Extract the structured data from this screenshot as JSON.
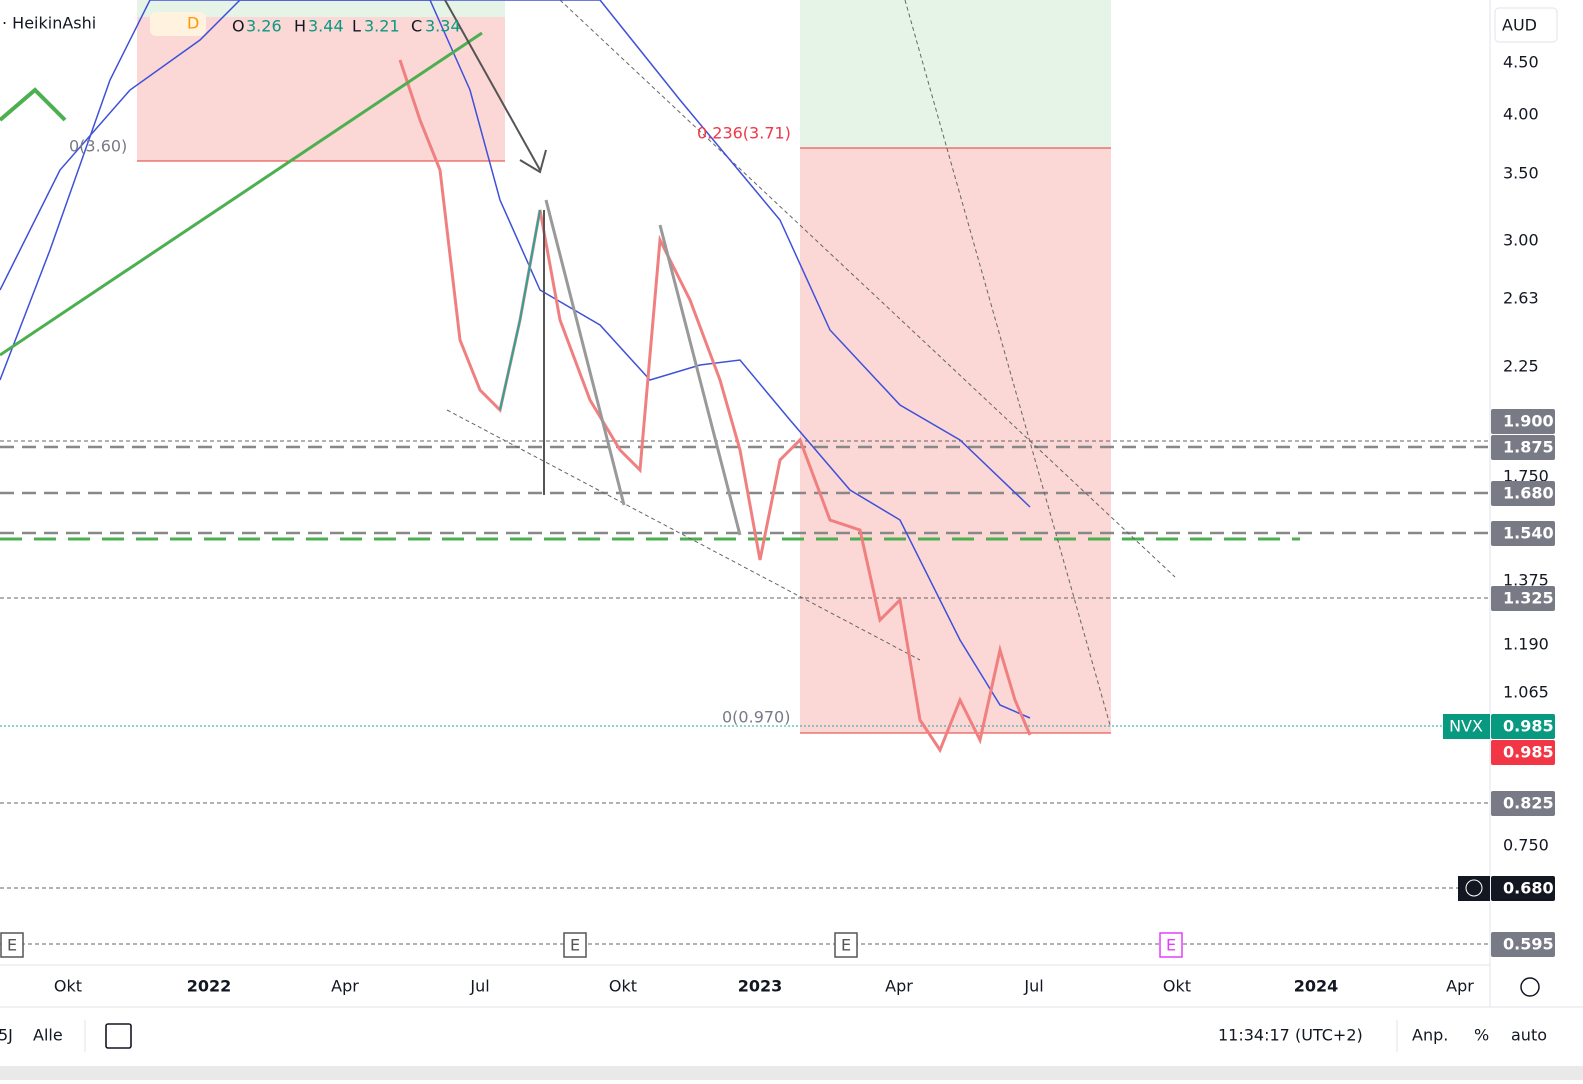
{
  "legend": {
    "style": "· HeikinAshi",
    "interval": "D",
    "open": "O",
    "open_value": "3.26",
    "high": "H",
    "high_value": "3.44",
    "low": "L",
    "low_value": "3.21",
    "close": "C",
    "close_value": "3.34"
  },
  "price_axis": {
    "currency": "AUD",
    "labels": [
      "4.50",
      "4.00",
      "3.50",
      "3.00",
      "2.63",
      "2.25",
      "1.750",
      "1.375",
      "1.190",
      "1.065",
      "0.750"
    ]
  },
  "price_badges": [
    "1.900",
    "1.875",
    "1.680",
    "1.540",
    "1.325",
    "0.985",
    "0.985",
    "0.825",
    "0.680",
    "0.595"
  ],
  "symbol_badge": "NVX",
  "time_axis": [
    "Okt",
    "2022",
    "Apr",
    "Jul",
    "Okt",
    "2023",
    "Apr",
    "Jul",
    "Okt",
    "2024",
    "Apr"
  ],
  "fib_labels": [
    "0(3.60)",
    "0.236(3.71)",
    "0(0.970)"
  ],
  "event_markers": [
    "E",
    "E",
    "E",
    "E"
  ],
  "toolbar": {
    "range_partial": "5J",
    "all": "Alle",
    "clock": "11:34:17 (UTC+2)",
    "adjust": "Anp.",
    "percent": "%",
    "auto": "auto"
  }
}
